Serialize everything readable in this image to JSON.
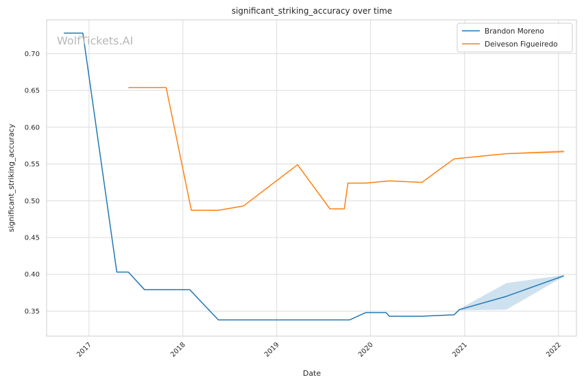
{
  "chart_data": {
    "type": "line",
    "title": "significant_striking_accuracy over time",
    "xlabel": "Date",
    "ylabel": "significant_striking_accuracy",
    "watermark": "WolfTickets.AI",
    "x_ticks": [
      "2017",
      "2018",
      "2019",
      "2020",
      "2021",
      "2022"
    ],
    "x_range": [
      "2016-07-20",
      "2022-03-12"
    ],
    "y_ticks": [
      "0.35",
      "0.40",
      "0.45",
      "0.50",
      "0.55",
      "0.60",
      "0.65",
      "0.70"
    ],
    "ylim": [
      0.316,
      0.746
    ],
    "grid": true,
    "legend_position": "top-right",
    "series": [
      {
        "name": "Brandon Moreno",
        "color": "#1f77b4",
        "points": [
          [
            "2016-09-25",
            0.728
          ],
          [
            "2016-12-08",
            0.728
          ],
          [
            "2017-04-19",
            0.403
          ],
          [
            "2017-06-03",
            0.403
          ],
          [
            "2017-08-05",
            0.379
          ],
          [
            "2018-01-28",
            0.379
          ],
          [
            "2018-05-19",
            0.338
          ],
          [
            "2019-08-04",
            0.338
          ],
          [
            "2019-10-12",
            0.338
          ],
          [
            "2019-12-14",
            0.348
          ],
          [
            "2020-03-01",
            0.348
          ],
          [
            "2020-03-14",
            0.343
          ],
          [
            "2020-07-19",
            0.343
          ],
          [
            "2020-11-21",
            0.345
          ],
          [
            "2020-12-12",
            0.352
          ],
          [
            "2021-06-12",
            0.37
          ],
          [
            "2022-01-22",
            0.398
          ]
        ],
        "band": {
          "upper": [
            [
              "2020-11-21",
              0.345
            ],
            [
              "2020-12-12",
              0.353
            ],
            [
              "2021-06-12",
              0.388
            ],
            [
              "2022-01-22",
              0.399
            ]
          ],
          "lower": [
            [
              "2020-11-21",
              0.344
            ],
            [
              "2020-12-12",
              0.351
            ],
            [
              "2021-06-12",
              0.352
            ],
            [
              "2022-01-22",
              0.397
            ]
          ]
        }
      },
      {
        "name": "Deiveson Figueiredo",
        "color": "#ff7f0e",
        "points": [
          [
            "2017-06-03",
            0.654
          ],
          [
            "2017-10-28",
            0.654
          ],
          [
            "2018-02-03",
            0.487
          ],
          [
            "2018-05-19",
            0.487
          ],
          [
            "2018-08-25",
            0.493
          ],
          [
            "2019-03-23",
            0.549
          ],
          [
            "2019-07-27",
            0.489
          ],
          [
            "2019-09-21",
            0.489
          ],
          [
            "2019-10-05",
            0.524
          ],
          [
            "2019-12-14",
            0.524
          ],
          [
            "2020-03-14",
            0.527
          ],
          [
            "2020-07-19",
            0.525
          ],
          [
            "2020-11-21",
            0.557
          ],
          [
            "2021-06-12",
            0.564
          ],
          [
            "2022-01-22",
            0.567
          ]
        ],
        "band": {
          "upper": [
            [
              "2021-06-12",
              0.5645
            ],
            [
              "2022-01-22",
              0.569
            ]
          ],
          "lower": [
            [
              "2021-06-12",
              0.5635
            ],
            [
              "2022-01-22",
              0.565
            ]
          ]
        }
      }
    ]
  }
}
